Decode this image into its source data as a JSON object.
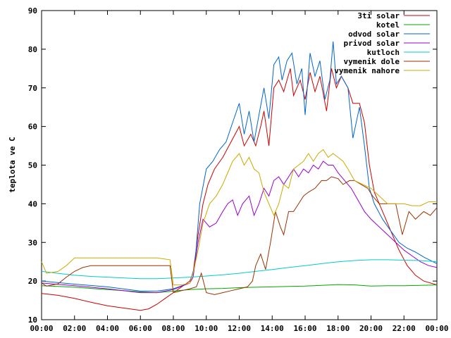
{
  "chart_data": {
    "type": "line",
    "ylabel": "teplota ve C",
    "xlabel": "",
    "title": "",
    "ylim": [
      10,
      90
    ],
    "xlim": [
      0,
      24
    ],
    "grid": false,
    "legend_position": "top-right",
    "yticks": [
      "10",
      "20",
      "30",
      "40",
      "50",
      "60",
      "70",
      "80",
      "90"
    ],
    "xticks": [
      "00:00",
      "02:00",
      "04:00",
      "06:00",
      "08:00",
      "10:00",
      "12:00",
      "14:00",
      "16:00",
      "18:00",
      "20:00",
      "22:00",
      "00:00"
    ],
    "series": [
      {
        "name": "3ti solar",
        "color": "#cc0000",
        "points": [
          [
            0,
            16.8
          ],
          [
            1,
            16.3
          ],
          [
            2,
            15.5
          ],
          [
            3,
            14.5
          ],
          [
            4,
            13.6
          ],
          [
            5,
            13.0
          ],
          [
            6,
            12.4
          ],
          [
            6.5,
            12.8
          ],
          [
            7,
            14.0
          ],
          [
            7.5,
            15.5
          ],
          [
            8,
            17.0
          ],
          [
            8.5,
            18.5
          ],
          [
            9,
            20.0
          ],
          [
            9.2,
            22
          ],
          [
            9.5,
            32
          ],
          [
            9.8,
            40
          ],
          [
            10.1,
            45
          ],
          [
            10.5,
            49
          ],
          [
            11,
            52
          ],
          [
            11.5,
            56
          ],
          [
            12,
            60
          ],
          [
            12.3,
            55
          ],
          [
            12.7,
            58
          ],
          [
            13,
            55
          ],
          [
            13.3,
            60
          ],
          [
            13.5,
            64
          ],
          [
            13.8,
            55
          ],
          [
            14.1,
            70
          ],
          [
            14.4,
            72
          ],
          [
            14.7,
            69
          ],
          [
            15.1,
            75
          ],
          [
            15.3,
            68
          ],
          [
            15.7,
            72
          ],
          [
            16,
            67
          ],
          [
            16.3,
            74
          ],
          [
            16.6,
            69
          ],
          [
            16.9,
            73
          ],
          [
            17.3,
            64
          ],
          [
            17.6,
            75
          ],
          [
            17.9,
            70
          ],
          [
            18.2,
            73
          ],
          [
            18.6,
            70
          ],
          [
            18.9,
            66
          ],
          [
            19.3,
            66
          ],
          [
            19.6,
            61
          ],
          [
            19.9,
            50
          ],
          [
            20.2,
            43
          ],
          [
            20.7,
            38
          ],
          [
            21.2,
            33
          ],
          [
            21.7,
            28
          ],
          [
            22.2,
            24
          ],
          [
            22.7,
            21.5
          ],
          [
            23.2,
            20
          ],
          [
            24,
            19
          ]
        ]
      },
      {
        "name": "kotel",
        "color": "#00aa00",
        "points": [
          [
            0,
            18.8
          ],
          [
            1,
            18.6
          ],
          [
            2,
            18.4
          ],
          [
            3,
            18.1
          ],
          [
            4,
            17.8
          ],
          [
            5,
            17.5
          ],
          [
            6,
            17.2
          ],
          [
            7,
            17.0
          ],
          [
            8,
            17.4
          ],
          [
            9,
            17.8
          ],
          [
            10,
            18.0
          ],
          [
            11,
            18.1
          ],
          [
            12,
            18.3
          ],
          [
            13,
            18.4
          ],
          [
            14,
            18.5
          ],
          [
            15,
            18.6
          ],
          [
            16,
            18.7
          ],
          [
            17,
            18.9
          ],
          [
            18,
            19.1
          ],
          [
            19,
            19.0
          ],
          [
            20,
            18.7
          ],
          [
            21,
            18.8
          ],
          [
            22,
            18.8
          ],
          [
            23,
            18.9
          ],
          [
            24,
            19.0
          ]
        ]
      },
      {
        "name": "odvod solar",
        "color": "#0066cc",
        "points": [
          [
            0,
            20.0
          ],
          [
            2,
            19.2
          ],
          [
            4,
            18.5
          ],
          [
            6,
            17.4
          ],
          [
            7,
            17.4
          ],
          [
            8,
            18.0
          ],
          [
            9,
            19.5
          ],
          [
            9.3,
            24
          ],
          [
            9.6,
            40
          ],
          [
            10,
            49
          ],
          [
            10.4,
            51
          ],
          [
            10.8,
            54
          ],
          [
            11.2,
            56
          ],
          [
            11.6,
            61
          ],
          [
            12,
            66
          ],
          [
            12.3,
            58
          ],
          [
            12.6,
            64
          ],
          [
            12.9,
            56
          ],
          [
            13.2,
            63
          ],
          [
            13.5,
            70
          ],
          [
            13.8,
            62
          ],
          [
            14.1,
            76
          ],
          [
            14.4,
            78
          ],
          [
            14.6,
            72
          ],
          [
            14.9,
            77
          ],
          [
            15.2,
            79
          ],
          [
            15.5,
            71
          ],
          [
            15.8,
            75
          ],
          [
            16,
            63
          ],
          [
            16.3,
            79
          ],
          [
            16.6,
            73
          ],
          [
            16.9,
            77
          ],
          [
            17.2,
            67
          ],
          [
            17.5,
            72
          ],
          [
            17.7,
            82
          ],
          [
            17.9,
            71
          ],
          [
            18.2,
            73
          ],
          [
            18.6,
            70
          ],
          [
            18.9,
            57
          ],
          [
            19.3,
            65
          ],
          [
            19.6,
            55
          ],
          [
            19.9,
            44
          ],
          [
            20.2,
            40
          ],
          [
            20.7,
            36
          ],
          [
            21.2,
            33
          ],
          [
            21.7,
            30
          ],
          [
            22.2,
            28.5
          ],
          [
            22.7,
            27.5
          ],
          [
            23.2,
            26.2
          ],
          [
            24,
            24.5
          ]
        ]
      },
      {
        "name": "privod solar",
        "color": "#9900cc",
        "points": [
          [
            0,
            19.5
          ],
          [
            2,
            18.8
          ],
          [
            4,
            18.0
          ],
          [
            6,
            17.0
          ],
          [
            7,
            17.0
          ],
          [
            8,
            17.8
          ],
          [
            9,
            19.5
          ],
          [
            9.2,
            21
          ],
          [
            9.5,
            30
          ],
          [
            9.8,
            36
          ],
          [
            10.2,
            34
          ],
          [
            10.6,
            35
          ],
          [
            11,
            38
          ],
          [
            11.3,
            40
          ],
          [
            11.6,
            41
          ],
          [
            11.9,
            37
          ],
          [
            12.2,
            40
          ],
          [
            12.6,
            42
          ],
          [
            12.9,
            37
          ],
          [
            13.2,
            40
          ],
          [
            13.5,
            44
          ],
          [
            13.8,
            42
          ],
          [
            14.1,
            46
          ],
          [
            14.4,
            47
          ],
          [
            14.7,
            45
          ],
          [
            15,
            47
          ],
          [
            15.3,
            49
          ],
          [
            15.6,
            47
          ],
          [
            15.9,
            49
          ],
          [
            16.2,
            48
          ],
          [
            16.5,
            50
          ],
          [
            16.8,
            49
          ],
          [
            17.1,
            51
          ],
          [
            17.4,
            50
          ],
          [
            17.7,
            50
          ],
          [
            18,
            48
          ],
          [
            18.4,
            46
          ],
          [
            18.8,
            44
          ],
          [
            19.2,
            41
          ],
          [
            19.6,
            38
          ],
          [
            20,
            36
          ],
          [
            20.5,
            34
          ],
          [
            21,
            32
          ],
          [
            21.5,
            30
          ],
          [
            22,
            28
          ],
          [
            22.5,
            26.5
          ],
          [
            23,
            25
          ],
          [
            23.5,
            24
          ],
          [
            24,
            23.5
          ]
        ]
      },
      {
        "name": "kutloch",
        "color": "#00cccc",
        "points": [
          [
            0,
            22.5
          ],
          [
            1,
            22
          ],
          [
            2,
            21.5
          ],
          [
            3,
            21.2
          ],
          [
            4,
            21
          ],
          [
            5,
            20.8
          ],
          [
            6,
            20.6
          ],
          [
            7,
            20.6
          ],
          [
            8,
            20.8
          ],
          [
            9,
            21
          ],
          [
            10,
            21.3
          ],
          [
            11,
            21.6
          ],
          [
            12,
            22
          ],
          [
            13,
            22.5
          ],
          [
            14,
            23
          ],
          [
            15,
            23.5
          ],
          [
            16,
            24
          ],
          [
            17,
            24.5
          ],
          [
            18,
            25
          ],
          [
            19,
            25.3
          ],
          [
            20,
            25.5
          ],
          [
            21,
            25.5
          ],
          [
            22,
            25.4
          ],
          [
            23,
            25.3
          ],
          [
            24,
            25.0
          ]
        ]
      },
      {
        "name": "vymenik dole",
        "color": "#993300",
        "points": [
          [
            0,
            19.5
          ],
          [
            0.3,
            18.7
          ],
          [
            1,
            19.3
          ],
          [
            1.5,
            21
          ],
          [
            2,
            22.5
          ],
          [
            2.5,
            23.5
          ],
          [
            3,
            24.0
          ],
          [
            4,
            24.0
          ],
          [
            5,
            24.0
          ],
          [
            6,
            24.0
          ],
          [
            7,
            24.0
          ],
          [
            7.8,
            24.0
          ],
          [
            8,
            17
          ],
          [
            8.5,
            17.5
          ],
          [
            9,
            18
          ],
          [
            9.4,
            18.5
          ],
          [
            9.7,
            22
          ],
          [
            10,
            17
          ],
          [
            10.5,
            16.5
          ],
          [
            11,
            17
          ],
          [
            11.5,
            17.5
          ],
          [
            12,
            18
          ],
          [
            12.5,
            18.5
          ],
          [
            12.8,
            20
          ],
          [
            13,
            24
          ],
          [
            13.3,
            27
          ],
          [
            13.6,
            23
          ],
          [
            13.9,
            30
          ],
          [
            14.2,
            38
          ],
          [
            14.5,
            34
          ],
          [
            14.7,
            32
          ],
          [
            15,
            38
          ],
          [
            15.3,
            38
          ],
          [
            15.6,
            40
          ],
          [
            15.9,
            42
          ],
          [
            16.2,
            43
          ],
          [
            16.6,
            44
          ],
          [
            17,
            46
          ],
          [
            17.3,
            46
          ],
          [
            17.6,
            47
          ],
          [
            18,
            46.5
          ],
          [
            18.3,
            45
          ],
          [
            18.7,
            46
          ],
          [
            19,
            46
          ],
          [
            19.4,
            45
          ],
          [
            19.8,
            44
          ],
          [
            20.1,
            42
          ],
          [
            20.5,
            40
          ],
          [
            21.5,
            40
          ],
          [
            21.9,
            32
          ],
          [
            22.3,
            38
          ],
          [
            22.7,
            36
          ],
          [
            23.2,
            38
          ],
          [
            23.6,
            37
          ],
          [
            24,
            39
          ]
        ]
      },
      {
        "name": "vymenik nahore",
        "color": "#ccaa00",
        "points": [
          [
            0,
            25
          ],
          [
            0.3,
            22
          ],
          [
            1,
            22.5
          ],
          [
            1.5,
            24
          ],
          [
            2,
            26
          ],
          [
            3,
            26
          ],
          [
            4,
            26
          ],
          [
            5,
            26
          ],
          [
            6,
            26
          ],
          [
            7,
            26
          ],
          [
            7.8,
            25.5
          ],
          [
            8,
            19
          ],
          [
            8.5,
            19
          ],
          [
            9,
            19.5
          ],
          [
            9.2,
            22
          ],
          [
            9.5,
            28
          ],
          [
            9.8,
            35
          ],
          [
            10.2,
            40
          ],
          [
            10.6,
            42
          ],
          [
            11,
            45
          ],
          [
            11.3,
            48
          ],
          [
            11.6,
            51
          ],
          [
            12,
            53
          ],
          [
            12.3,
            50
          ],
          [
            12.6,
            52
          ],
          [
            12.9,
            49
          ],
          [
            13.2,
            48
          ],
          [
            13.5,
            43
          ],
          [
            13.8,
            40
          ],
          [
            14.1,
            37
          ],
          [
            14.4,
            40
          ],
          [
            14.7,
            45
          ],
          [
            15,
            44
          ],
          [
            15.3,
            49
          ],
          [
            15.6,
            50
          ],
          [
            15.9,
            51
          ],
          [
            16.2,
            53
          ],
          [
            16.5,
            51
          ],
          [
            16.8,
            53
          ],
          [
            17.1,
            54
          ],
          [
            17.4,
            52
          ],
          [
            17.7,
            53
          ],
          [
            18,
            52
          ],
          [
            18.3,
            51
          ],
          [
            18.6,
            49
          ],
          [
            19,
            46
          ],
          [
            19.5,
            45
          ],
          [
            20,
            44
          ],
          [
            20.5,
            42
          ],
          [
            21,
            40
          ],
          [
            21.5,
            40
          ],
          [
            22,
            40
          ],
          [
            22.5,
            39.5
          ],
          [
            23,
            39.5
          ],
          [
            23.5,
            40.5
          ],
          [
            24,
            40.5
          ]
        ]
      }
    ]
  }
}
